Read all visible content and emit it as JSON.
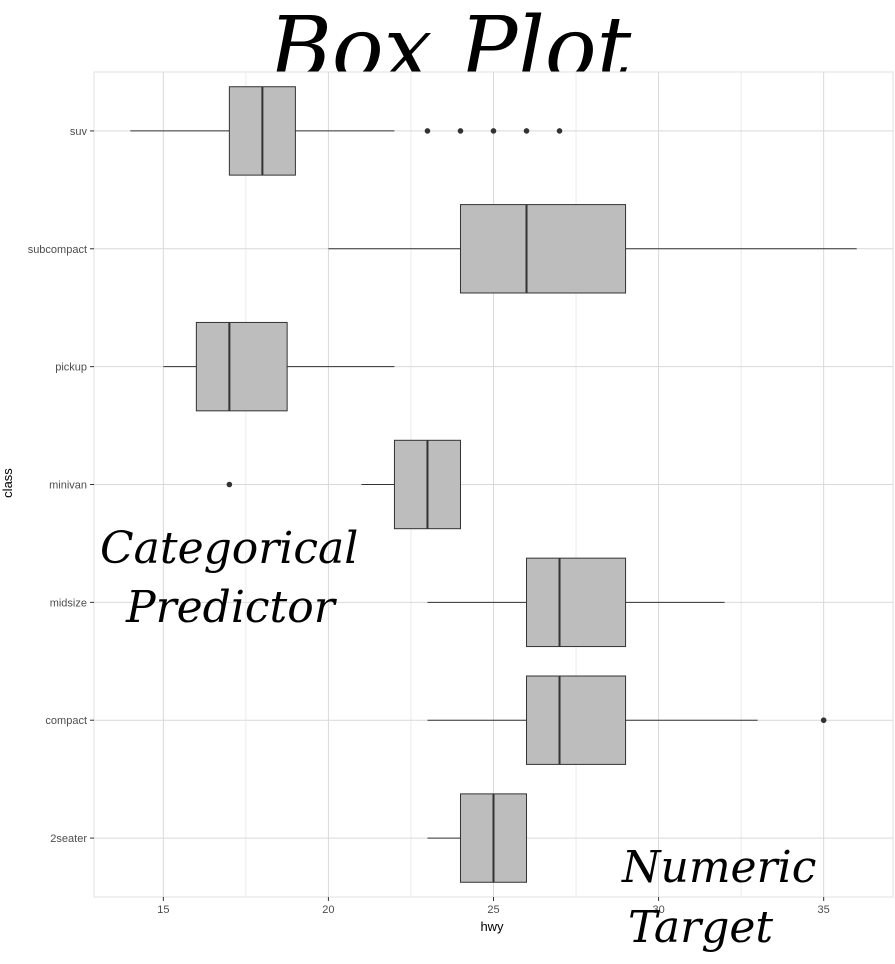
{
  "title": "Box Plot",
  "annotations": {
    "left_line1": "Categorical",
    "left_line2": "Predictor",
    "right_line1": "Numeric",
    "right_line2": "Target"
  },
  "colors": {
    "panel_background": "#ffffff",
    "grid": "#d9d9d9",
    "box_fill": "#bdbdbd",
    "box_stroke": "#333333",
    "outlier": "#333333"
  },
  "chart_data": {
    "type": "boxplot",
    "orientation": "horizontal",
    "xlabel": "hwy",
    "ylabel": "class",
    "xlim": [
      12.9,
      37.1
    ],
    "xticks": [
      15,
      20,
      25,
      30,
      35
    ],
    "grid": true,
    "categories": [
      "2seater",
      "compact",
      "midsize",
      "minivan",
      "pickup",
      "subcompact",
      "suv"
    ],
    "boxes": [
      {
        "category": "2seater",
        "whisker_low": 23,
        "q1": 24,
        "median": 25,
        "q3": 26,
        "whisker_high": 26,
        "outliers": []
      },
      {
        "category": "compact",
        "whisker_low": 23,
        "q1": 26,
        "median": 27,
        "q3": 29,
        "whisker_high": 33,
        "outliers": [
          35
        ]
      },
      {
        "category": "midsize",
        "whisker_low": 23,
        "q1": 26,
        "median": 27,
        "q3": 29,
        "whisker_high": 32,
        "outliers": []
      },
      {
        "category": "minivan",
        "whisker_low": 21,
        "q1": 22,
        "median": 23,
        "q3": 24,
        "whisker_high": 24,
        "outliers": [
          17
        ]
      },
      {
        "category": "pickup",
        "whisker_low": 15,
        "q1": 16,
        "median": 17,
        "q3": 18.75,
        "whisker_high": 22,
        "outliers": []
      },
      {
        "category": "subcompact",
        "whisker_low": 20,
        "q1": 24,
        "median": 26,
        "q3": 29,
        "whisker_high": 36,
        "outliers": []
      },
      {
        "category": "suv",
        "whisker_low": 14,
        "q1": 17,
        "median": 18,
        "q3": 19,
        "whisker_high": 22,
        "outliers": [
          23,
          24,
          25,
          26,
          27
        ]
      }
    ]
  }
}
